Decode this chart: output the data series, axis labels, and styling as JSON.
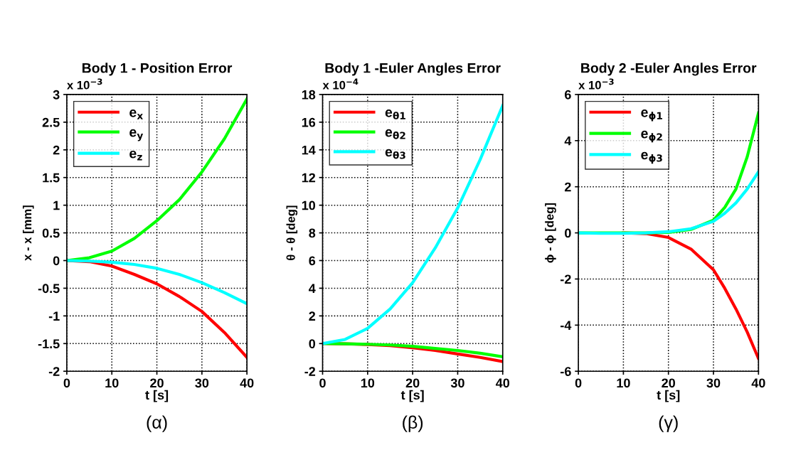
{
  "chart_data": [
    {
      "type": "line",
      "title": "Body 1 - Position Error",
      "xlabel": "t [s]",
      "ylabel": "x - x [mm]",
      "annotations": [
        "x 10$^{−3}$",
        "(α)"
      ],
      "x": [
        0,
        5,
        10,
        15,
        20,
        25,
        30,
        35,
        40
      ],
      "xlim": [
        0,
        40
      ],
      "xticks": [
        0,
        10,
        20,
        30,
        40
      ],
      "ylim": [
        -2,
        3
      ],
      "yticks": [
        -2,
        -1.5,
        -1,
        -0.5,
        0,
        0.5,
        1,
        1.5,
        2,
        2.5,
        3
      ],
      "grid": true,
      "legend": "top left",
      "line_style": "solid",
      "series": [
        {
          "name": "e$_{x}$",
          "color": "#ff0000",
          "values": [
            0,
            -0.02,
            -0.1,
            -0.25,
            -0.42,
            -0.65,
            -0.92,
            -1.3,
            -1.75
          ]
        },
        {
          "name": "e$_{y}$",
          "color": "#00ff00",
          "values": [
            0,
            0.05,
            0.17,
            0.4,
            0.72,
            1.1,
            1.6,
            2.2,
            2.92
          ]
        },
        {
          "name": "e$_{z}$",
          "color": "#00ffff",
          "values": [
            0,
            -0.01,
            -0.03,
            -0.07,
            -0.14,
            -0.25,
            -0.4,
            -0.58,
            -0.78
          ]
        }
      ]
    },
    {
      "type": "line",
      "title": "Body 1 -Euler Angles Error",
      "xlabel": "t [s]",
      "ylabel": "θ - θ [deg]",
      "annotations": [
        "x 10$^{−4}$",
        "(β)"
      ],
      "x": [
        0,
        5,
        10,
        15,
        20,
        25,
        30,
        35,
        40
      ],
      "xlim": [
        0,
        40
      ],
      "xticks": [
        0,
        10,
        20,
        30,
        40
      ],
      "ylim": [
        -2,
        18
      ],
      "yticks": [
        -2,
        0,
        2,
        4,
        6,
        8,
        10,
        12,
        14,
        16,
        18
      ],
      "grid": true,
      "legend": "top left",
      "line_style": "solid",
      "series": [
        {
          "name": "e$_{θ1}$",
          "color": "#ff0000",
          "values": [
            0,
            -0.02,
            -0.07,
            -0.15,
            -0.3,
            -0.5,
            -0.75,
            -1.0,
            -1.3
          ]
        },
        {
          "name": "e$_{θ2}$",
          "color": "#00ff00",
          "values": [
            0,
            -0.02,
            -0.05,
            -0.1,
            -0.2,
            -0.35,
            -0.5,
            -0.7,
            -0.95
          ]
        },
        {
          "name": "e$_{θ3}$",
          "color": "#00ffff",
          "values": [
            0,
            0.3,
            1.1,
            2.5,
            4.4,
            6.9,
            9.8,
            13.3,
            17.2
          ]
        }
      ]
    },
    {
      "type": "line",
      "title": "Body 2 -Euler Angles Error",
      "xlabel": "t [s]",
      "ylabel": "ϕ - ϕ [deg]",
      "annotations": [
        "x 10$^{−3}$",
        "(γ)"
      ],
      "x": [
        0,
        5,
        10,
        15,
        20,
        25,
        30,
        32.5,
        35,
        37.5,
        40
      ],
      "xlim": [
        0,
        40
      ],
      "xticks": [
        0,
        10,
        20,
        30,
        40
      ],
      "ylim": [
        -6,
        6
      ],
      "yticks": [
        -6,
        -4,
        -2,
        0,
        2,
        4,
        6
      ],
      "grid": true,
      "legend": "top left",
      "line_style": "solid",
      "series": [
        {
          "name": "e$_{ϕ1}$",
          "color": "#ff0000",
          "values": [
            null,
            null,
            0,
            -0.03,
            -0.2,
            -0.7,
            -1.6,
            -2.4,
            -3.3,
            -4.3,
            -5.45
          ]
        },
        {
          "name": "e$_{ϕ2}$",
          "color": "#00ff00",
          "values": [
            0,
            0,
            0,
            0,
            0.02,
            0.15,
            0.55,
            1.1,
            1.9,
            3.3,
            5.2
          ]
        },
        {
          "name": "e$_{ϕ3}$",
          "color": "#00ffff",
          "values": [
            0,
            -0.02,
            -0.02,
            0,
            0.05,
            0.18,
            0.5,
            0.85,
            1.3,
            1.9,
            2.65
          ]
        }
      ]
    }
  ]
}
